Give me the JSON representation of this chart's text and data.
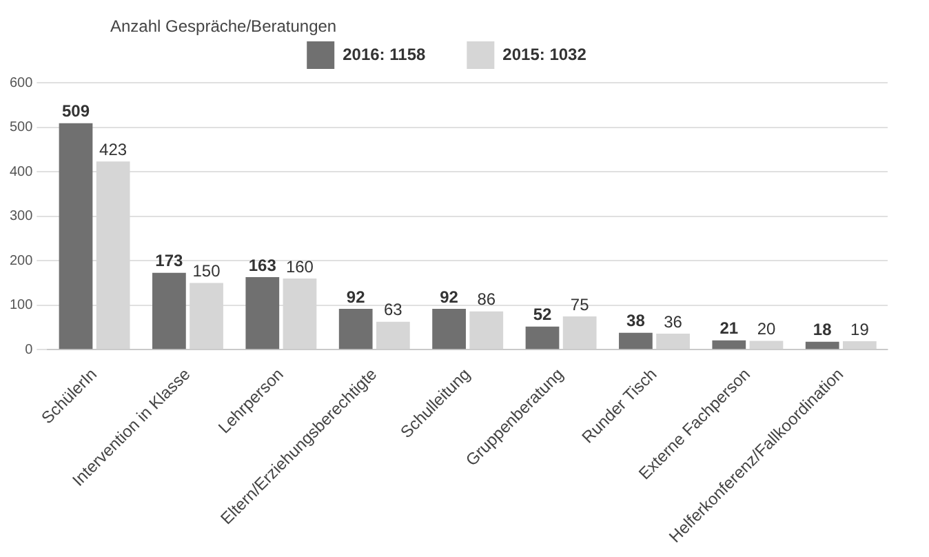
{
  "chart_data": {
    "type": "bar",
    "legend_title": "Anzahl Gespräche/Beratungen",
    "categories": [
      "SchülerIn",
      "Intervention in Klasse",
      "Lehrperson",
      "Eltern/Erziehungsberechtigte",
      "Schulleitung",
      "Gruppenberatung",
      "Runder Tisch",
      "Externe Fachperson",
      "Helferkonferenz/Fallkoordination"
    ],
    "series": [
      {
        "name": "2016: 1158",
        "color": "#707070",
        "values": [
          509,
          173,
          163,
          92,
          92,
          52,
          38,
          21,
          18
        ]
      },
      {
        "name": "2015: 1032",
        "color": "#d6d6d6",
        "values": [
          423,
          150,
          160,
          63,
          86,
          75,
          36,
          20,
          19
        ]
      }
    ],
    "ylim": [
      0,
      600
    ],
    "yticks": [
      0,
      100,
      200,
      300,
      400,
      500,
      600
    ],
    "grid": "y",
    "legend": "top",
    "data_labels": true
  }
}
